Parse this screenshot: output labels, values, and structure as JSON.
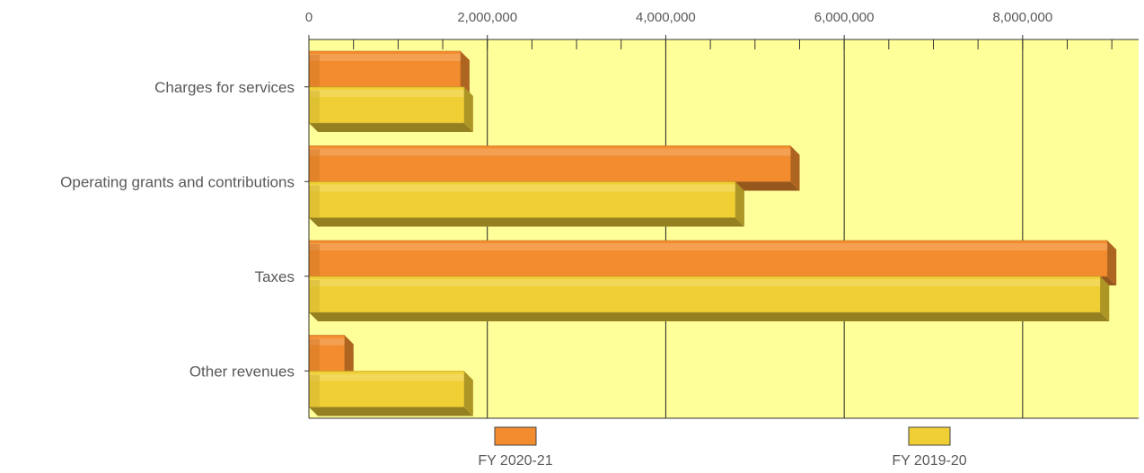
{
  "chart_data": {
    "type": "bar",
    "orientation": "horizontal",
    "categories": [
      "Charges for services",
      "Operating grants and contributions",
      "Taxes",
      "Other revenues"
    ],
    "series": [
      {
        "name": "FY 2020-21",
        "color": "#F28C2E",
        "values": [
          1700000,
          5400000,
          8950000,
          400000
        ]
      },
      {
        "name": "FY 2019-20",
        "color": "#F0CF35",
        "values": [
          1740000,
          4780000,
          8870000,
          1740000
        ]
      }
    ],
    "xlim": [
      0,
      9300000
    ],
    "xticks": [
      0,
      2000000,
      4000000,
      6000000,
      8000000
    ],
    "xtick_labels": [
      "0",
      "2,000,000",
      "4,000,000",
      "6,000,000",
      "8,000,000"
    ],
    "xlabel": "",
    "ylabel": "",
    "title": "",
    "grid": true,
    "legend_position": "bottom",
    "plot_background": "#FFFF99"
  }
}
